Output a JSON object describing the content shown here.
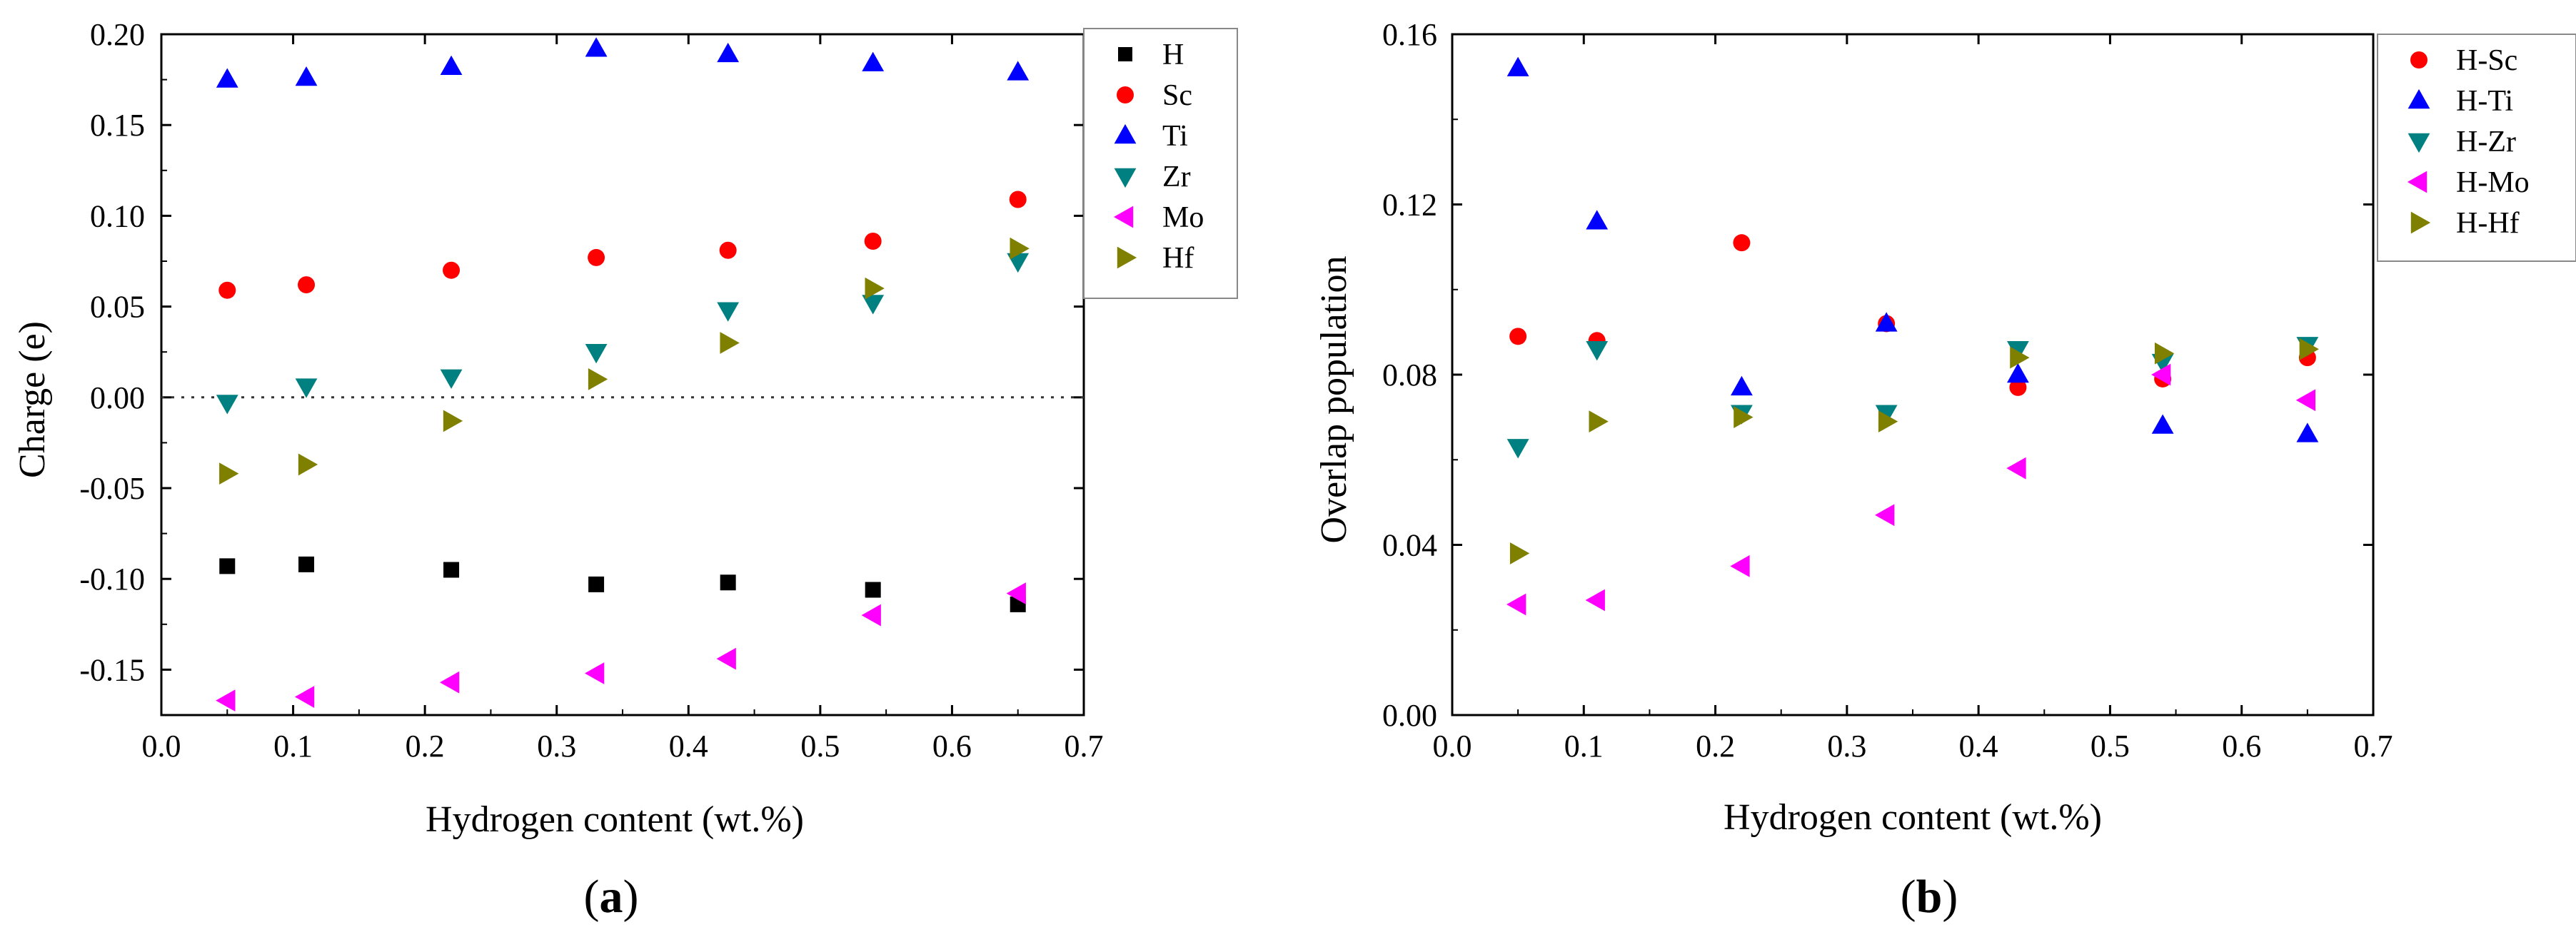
{
  "chart_data": [
    {
      "id": "a",
      "type": "scatter",
      "caption": "a",
      "xlabel": "Hydrogen content (wt.%)",
      "ylabel": "Charge (e)",
      "xlim": [
        0.0,
        0.7
      ],
      "ylim": [
        -0.175,
        0.2
      ],
      "xticks": [
        "0.0",
        "0.1",
        "0.2",
        "0.3",
        "0.4",
        "0.5",
        "0.6",
        "0.7"
      ],
      "yticks": [
        "0.20",
        "0.15",
        "0.10",
        "0.05",
        "0.00",
        "-0.05",
        "-0.10",
        "-0.15"
      ],
      "reference_line": 0.0,
      "x": [
        0.05,
        0.11,
        0.22,
        0.33,
        0.43,
        0.54,
        0.65
      ],
      "series": [
        {
          "name": "H",
          "marker": "square",
          "color": "#000000",
          "values": [
            -0.093,
            -0.092,
            -0.095,
            -0.103,
            -0.102,
            -0.106,
            -0.114
          ]
        },
        {
          "name": "Sc",
          "marker": "circle",
          "color": "#ff0000",
          "values": [
            0.059,
            0.062,
            0.07,
            0.077,
            0.081,
            0.086,
            0.109
          ]
        },
        {
          "name": "Ti",
          "marker": "triangle-up",
          "color": "#0000ff",
          "values": [
            0.175,
            0.176,
            0.182,
            0.192,
            0.189,
            0.184,
            0.179
          ]
        },
        {
          "name": "Zr",
          "marker": "triangle-down",
          "color": "#008080",
          "values": [
            -0.003,
            0.006,
            0.011,
            0.025,
            0.048,
            0.052,
            0.075
          ]
        },
        {
          "name": "Mo",
          "marker": "triangle-left",
          "color": "#ff00ff",
          "values": [
            -0.167,
            -0.165,
            -0.157,
            -0.152,
            -0.144,
            -0.12,
            -0.108
          ]
        },
        {
          "name": "Hf",
          "marker": "triangle-right",
          "color": "#808000",
          "values": [
            -0.042,
            -0.037,
            -0.013,
            0.01,
            0.03,
            0.06,
            0.082
          ]
        }
      ]
    },
    {
      "id": "b",
      "type": "scatter",
      "caption": "b",
      "xlabel": "Hydrogen content (wt.%)",
      "ylabel": "Overlap population",
      "xlim": [
        0.0,
        0.7
      ],
      "ylim": [
        0.0,
        0.16
      ],
      "xticks": [
        "0.0",
        "0.1",
        "0.2",
        "0.3",
        "0.4",
        "0.5",
        "0.6",
        "0.7"
      ],
      "yticks": [
        "0.16",
        "0.12",
        "0.08",
        "0.04",
        "0.00"
      ],
      "x": [
        0.05,
        0.11,
        0.22,
        0.33,
        0.43,
        0.54,
        0.65
      ],
      "series": [
        {
          "name": "H-Sc",
          "marker": "circle",
          "color": "#ff0000",
          "values": [
            0.089,
            0.088,
            0.111,
            0.092,
            0.077,
            0.079,
            0.084
          ]
        },
        {
          "name": "H-Ti",
          "marker": "triangle-up",
          "color": "#0000ff",
          "values": [
            0.152,
            0.116,
            0.077,
            0.092,
            0.08,
            0.068,
            0.066
          ]
        },
        {
          "name": "H-Zr",
          "marker": "triangle-down",
          "color": "#008080",
          "values": [
            0.063,
            0.086,
            0.071,
            0.071,
            0.086,
            0.083,
            0.087
          ]
        },
        {
          "name": "H-Mo",
          "marker": "triangle-left",
          "color": "#ff00ff",
          "values": [
            0.026,
            0.027,
            0.035,
            0.047,
            0.058,
            0.08,
            0.074
          ]
        },
        {
          "name": "H-Hf",
          "marker": "triangle-right",
          "color": "#808000",
          "values": [
            0.038,
            0.069,
            0.07,
            0.069,
            0.084,
            0.085,
            0.086
          ]
        }
      ]
    }
  ]
}
